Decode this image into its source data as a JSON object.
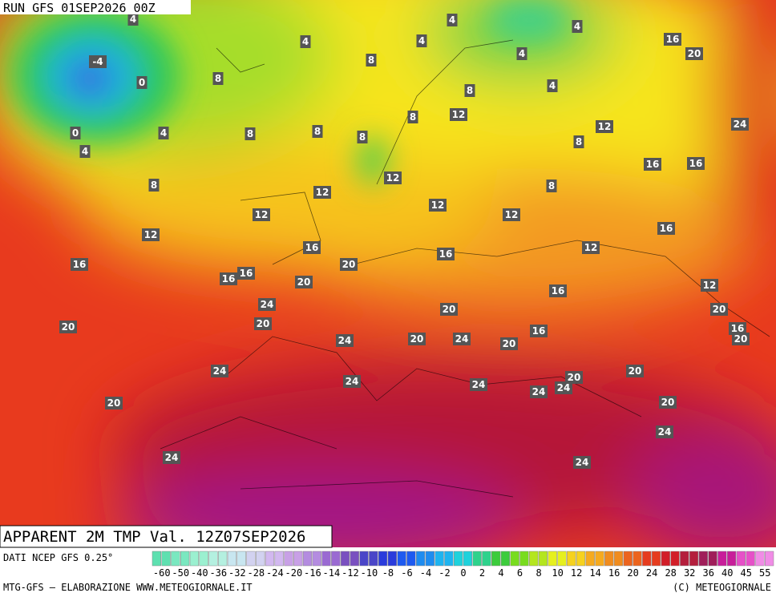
{
  "header": {
    "run": "RUN GFS 01SEP2026 00Z"
  },
  "footer": {
    "title": "APPARENT 2M TMP Val. 12Z07SEP2026",
    "source": "DATI NCEP GFS 0.25°",
    "credit": "MTG-GFS — ELABORAZIONE WWW.METEOGIORNALE.IT",
    "copyright": "(C) METEOGIORNALE"
  },
  "legend": {
    "labels": [
      "-60",
      "-50",
      "-40",
      "-36",
      "-32",
      "-28",
      "-24",
      "-20",
      "-16",
      "-14",
      "-12",
      "-10",
      "-8",
      "-6",
      "-4",
      "-2",
      "0",
      "2",
      "4",
      "6",
      "8",
      "10",
      "12",
      "14",
      "16",
      "20",
      "24",
      "28",
      "32",
      "36",
      "40",
      "45",
      "55"
    ]
  },
  "map_labels": [
    "4",
    "4",
    "8",
    "4",
    "4",
    "4",
    "16",
    "20",
    "4",
    "4",
    "-4",
    "0",
    "8",
    "8",
    "8",
    "12",
    "4",
    "0",
    "4",
    "8",
    "8",
    "8",
    "12",
    "24",
    "8",
    "16",
    "16",
    "8",
    "12",
    "12",
    "8",
    "12",
    "12",
    "12",
    "12",
    "16",
    "16",
    "12",
    "16",
    "16",
    "20",
    "16",
    "16",
    "20",
    "16",
    "12",
    "24",
    "20",
    "20",
    "20",
    "16",
    "24",
    "20",
    "24",
    "20",
    "20",
    "16",
    "20",
    "24",
    "24",
    "20",
    "20",
    "24",
    "24",
    "24",
    "20",
    "20",
    "24",
    "24",
    "24"
  ]
}
